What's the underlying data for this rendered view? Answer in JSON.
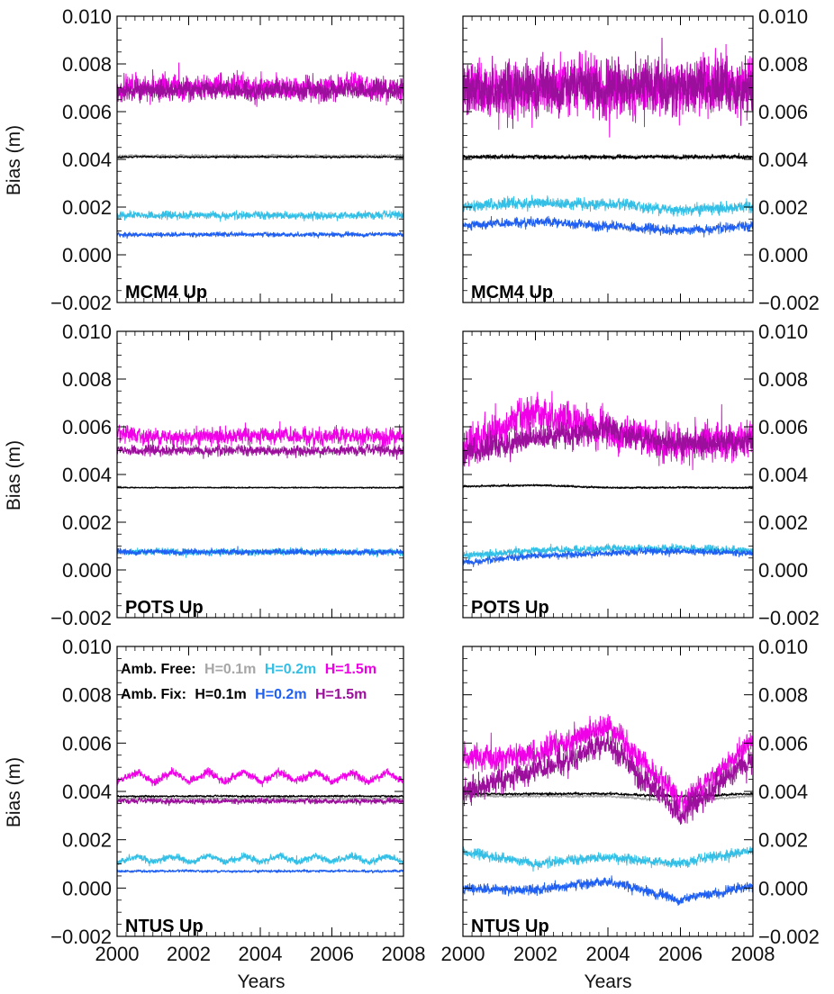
{
  "figure": {
    "ylabel": "Bias (m)",
    "xlabel": "Years",
    "colors": {
      "free_h01": "#a6a6a6",
      "free_h02": "#33bfe6",
      "free_h15": "#f000e6",
      "fix_h01": "#000000",
      "fix_h02": "#1f5ff2",
      "fix_h15": "#9c0f9c"
    },
    "legend": {
      "free_label": "Amb. Free:",
      "fix_label": "Amb. Fix:",
      "h01": "H=0.1m",
      "h02": "H=0.2m",
      "h15": "H=1.5m"
    }
  },
  "chart_data": [
    {
      "type": "line",
      "panel": "MCM4 Up",
      "column": "left",
      "x_range": [
        2000,
        2008
      ],
      "ylim": [
        -0.002,
        0.01
      ],
      "xticks": [
        "2000",
        "2002",
        "2004",
        "2006",
        "2008"
      ],
      "yticks": [
        "−0.002",
        "0.000",
        "0.002",
        "0.004",
        "0.006",
        "0.008",
        "0.010"
      ],
      "series": [
        {
          "name": "Amb. Free H=0.1m",
          "color_key": "free_h01",
          "mean": 0.00415,
          "noise": 4e-05,
          "seasonal": 0,
          "drift": [
            0,
            0,
            0,
            0,
            0
          ]
        },
        {
          "name": "Amb. Fix H=0.1m",
          "color_key": "fix_h01",
          "mean": 0.0041,
          "noise": 3e-05,
          "seasonal": 0,
          "drift": [
            0,
            0,
            0,
            0,
            0
          ]
        },
        {
          "name": "Amb. Free H=0.2m",
          "color_key": "free_h02",
          "mean": 0.00165,
          "noise": 0.00012,
          "seasonal": 0,
          "drift": [
            0,
            0,
            0,
            0,
            0
          ]
        },
        {
          "name": "Amb. Fix H=0.2m",
          "color_key": "fix_h02",
          "mean": 0.00085,
          "noise": 7e-05,
          "seasonal": 0,
          "drift": [
            0,
            0,
            0,
            0,
            0
          ]
        },
        {
          "name": "Amb. Free H=1.5m",
          "color_key": "free_h15",
          "mean": 0.007,
          "noise": 0.0004,
          "seasonal": 0,
          "drift": [
            0,
            0,
            0,
            0,
            0
          ]
        },
        {
          "name": "Amb. Fix H=1.5m",
          "color_key": "fix_h15",
          "mean": 0.0069,
          "noise": 0.0003,
          "seasonal": 0,
          "drift": [
            0,
            0,
            0,
            0,
            0
          ]
        }
      ]
    },
    {
      "type": "line",
      "panel": "MCM4 Up",
      "column": "right",
      "x_range": [
        2000,
        2008
      ],
      "ylim": [
        -0.002,
        0.01
      ],
      "xticks": [
        "2000",
        "2002",
        "2004",
        "2006",
        "2008"
      ],
      "yticks": [
        "−0.002",
        "0.000",
        "0.002",
        "0.004",
        "0.006",
        "0.008",
        "0.010"
      ],
      "series": [
        {
          "name": "Amb. Free H=0.1m",
          "color_key": "free_h01",
          "mean": 0.0041,
          "noise": 6e-05,
          "seasonal": 0,
          "drift": [
            0,
            0,
            0,
            0,
            0
          ]
        },
        {
          "name": "Amb. Fix H=0.1m",
          "color_key": "fix_h01",
          "mean": 0.0041,
          "noise": 6e-05,
          "seasonal": 0,
          "drift": [
            0,
            0,
            0,
            0,
            0
          ]
        },
        {
          "name": "Amb. Free H=0.2m",
          "color_key": "free_h02",
          "mean": 0.002,
          "noise": 0.00018,
          "seasonal": 0,
          "drift": [
            0,
            0.0002,
            0.0001,
            -0.0001,
            0
          ]
        },
        {
          "name": "Amb. Fix H=0.2m",
          "color_key": "fix_h02",
          "mean": 0.0012,
          "noise": 0.00015,
          "seasonal": 0,
          "drift": [
            0,
            0.0002,
            0,
            -0.0002,
            0
          ]
        },
        {
          "name": "Amb. Free H=1.5m",
          "color_key": "free_h15",
          "mean": 0.007,
          "noise": 0.0009,
          "seasonal": 0,
          "drift": [
            0,
            0,
            0,
            0,
            0
          ]
        },
        {
          "name": "Amb. Fix H=1.5m",
          "color_key": "fix_h15",
          "mean": 0.007,
          "noise": 0.0008,
          "seasonal": 0,
          "drift": [
            0,
            0,
            0,
            0,
            0
          ]
        }
      ]
    },
    {
      "type": "line",
      "panel": "POTS Up",
      "column": "left",
      "x_range": [
        2000,
        2008
      ],
      "ylim": [
        -0.002,
        0.01
      ],
      "xticks": [
        "2000",
        "2002",
        "2004",
        "2006",
        "2008"
      ],
      "yticks": [
        "−0.002",
        "0.000",
        "0.002",
        "0.004",
        "0.006",
        "0.008",
        "0.010"
      ],
      "series": [
        {
          "name": "Amb. Free H=0.1m",
          "color_key": "free_h01",
          "mean": 0.00345,
          "noise": 2e-05,
          "seasonal": 0,
          "drift": [
            0,
            0,
            0,
            0,
            0
          ]
        },
        {
          "name": "Amb. Fix H=0.1m",
          "color_key": "fix_h01",
          "mean": 0.00345,
          "noise": 2e-05,
          "seasonal": 0,
          "drift": [
            0,
            0,
            0,
            0,
            0
          ]
        },
        {
          "name": "Amb. Free H=0.2m",
          "color_key": "free_h02",
          "mean": 0.00075,
          "noise": 0.0001,
          "seasonal": 0,
          "drift": [
            0,
            0,
            0,
            0,
            0
          ]
        },
        {
          "name": "Amb. Fix H=0.2m",
          "color_key": "fix_h02",
          "mean": 0.00075,
          "noise": 9e-05,
          "seasonal": 0,
          "drift": [
            0,
            0,
            0,
            0,
            0
          ]
        },
        {
          "name": "Amb. Free H=1.5m",
          "color_key": "free_h15",
          "mean": 0.0056,
          "noise": 0.00028,
          "seasonal": 0,
          "drift": [
            0,
            0,
            0,
            0,
            0
          ]
        },
        {
          "name": "Amb. Fix H=1.5m",
          "color_key": "fix_h15",
          "mean": 0.005,
          "noise": 0.00016,
          "seasonal": 0,
          "drift": [
            0,
            0,
            0,
            0,
            0
          ]
        }
      ]
    },
    {
      "type": "line",
      "panel": "POTS Up",
      "column": "right",
      "x_range": [
        2000,
        2008
      ],
      "ylim": [
        -0.002,
        0.01
      ],
      "xticks": [
        "2000",
        "2002",
        "2004",
        "2006",
        "2008"
      ],
      "yticks": [
        "−0.002",
        "0.000",
        "0.002",
        "0.004",
        "0.006",
        "0.008",
        "0.010"
      ],
      "series": [
        {
          "name": "Amb. Free H=0.1m",
          "color_key": "free_h01",
          "mean": 0.00345,
          "noise": 3e-05,
          "seasonal": 0,
          "drift": [
            5e-05,
            0.0001,
            0,
            0,
            0
          ]
        },
        {
          "name": "Amb. Fix H=0.1m",
          "color_key": "fix_h01",
          "mean": 0.00345,
          "noise": 3e-05,
          "seasonal": 0,
          "drift": [
            5e-05,
            0.0001,
            0,
            0,
            0
          ]
        },
        {
          "name": "Amb. Free H=0.2m",
          "color_key": "free_h02",
          "mean": 0.0008,
          "noise": 0.00012,
          "seasonal": 0,
          "drift": [
            -0.0002,
            0,
            0.0001,
            0.0001,
            0
          ]
        },
        {
          "name": "Amb. Fix H=0.2m",
          "color_key": "fix_h02",
          "mean": 0.0007,
          "noise": 0.0001,
          "seasonal": 0,
          "drift": [
            -0.0004,
            -0.0001,
            0,
            0.0001,
            0
          ]
        },
        {
          "name": "Amb. Free H=1.5m",
          "color_key": "free_h15",
          "mean": 0.0055,
          "noise": 0.0006,
          "seasonal": 0,
          "drift": [
            -0.0005,
            0.0012,
            0.0003,
            -0.0003,
            0
          ]
        },
        {
          "name": "Amb. Fix H=1.5m",
          "color_key": "fix_h15",
          "mean": 0.0053,
          "noise": 0.0004,
          "seasonal": 0,
          "drift": [
            -0.0005,
            0.0003,
            0.0005,
            0,
            0
          ]
        }
      ]
    },
    {
      "type": "line",
      "panel": "NTUS Up",
      "column": "left",
      "x_range": [
        2000,
        2008
      ],
      "ylim": [
        -0.002,
        0.01
      ],
      "xticks": [
        "2000",
        "2002",
        "2004",
        "2006",
        "2008"
      ],
      "yticks": [
        "−0.002",
        "0.000",
        "0.002",
        "0.004",
        "0.006",
        "0.008",
        "0.010"
      ],
      "series": [
        {
          "name": "Amb. Free H=0.1m",
          "color_key": "free_h01",
          "mean": 0.0037,
          "noise": 3e-05,
          "seasonal": 0,
          "drift": [
            0,
            0,
            0,
            0,
            0
          ]
        },
        {
          "name": "Amb. Fix H=0.1m",
          "color_key": "fix_h01",
          "mean": 0.0038,
          "noise": 3e-05,
          "seasonal": 0,
          "drift": [
            0,
            0,
            0,
            0,
            0
          ]
        },
        {
          "name": "Amb. Free H=0.2m",
          "color_key": "free_h02",
          "mean": 0.0012,
          "noise": 0.0001,
          "seasonal": 0.00025,
          "drift": [
            0,
            0,
            0,
            0,
            0
          ]
        },
        {
          "name": "Amb. Fix H=0.2m",
          "color_key": "fix_h02",
          "mean": 0.0007,
          "noise": 4e-05,
          "seasonal": 0,
          "drift": [
            0,
            0,
            0,
            0,
            0
          ]
        },
        {
          "name": "Amb. Free H=1.5m",
          "color_key": "free_h15",
          "mean": 0.0046,
          "noise": 0.00012,
          "seasonal": 0.0004,
          "drift": [
            0,
            0,
            0,
            0,
            0
          ]
        },
        {
          "name": "Amb. Fix H=1.5m",
          "color_key": "fix_h15",
          "mean": 0.0036,
          "noise": 8e-05,
          "seasonal": 0,
          "drift": [
            0,
            0,
            0,
            0,
            0
          ]
        }
      ]
    },
    {
      "type": "line",
      "panel": "NTUS Up",
      "column": "right",
      "x_range": [
        2000,
        2008
      ],
      "ylim": [
        -0.002,
        0.01
      ],
      "xticks": [
        "2000",
        "2002",
        "2004",
        "2006",
        "2008"
      ],
      "yticks": [
        "−0.002",
        "0.000",
        "0.002",
        "0.004",
        "0.006",
        "0.008",
        "0.010"
      ],
      "series": [
        {
          "name": "Amb. Free H=0.1m",
          "color_key": "free_h01",
          "mean": 0.0038,
          "noise": 4e-05,
          "seasonal": 0,
          "drift": [
            0,
            0,
            0,
            -0.0002,
            0
          ]
        },
        {
          "name": "Amb. Fix H=0.1m",
          "color_key": "fix_h01",
          "mean": 0.0039,
          "noise": 4e-05,
          "seasonal": 0,
          "drift": [
            0,
            0,
            0,
            -0.0001,
            0
          ]
        },
        {
          "name": "Amb. Free H=0.2m",
          "color_key": "free_h02",
          "mean": 0.001,
          "noise": 0.00015,
          "seasonal": 0,
          "drift": [
            0.0005,
            0,
            0.0003,
            0,
            0.0006
          ]
        },
        {
          "name": "Amb. Fix H=0.2m",
          "color_key": "fix_h02",
          "mean": -0.0001,
          "noise": 0.00015,
          "seasonal": 0,
          "drift": [
            0.0001,
            0,
            0.0004,
            -0.0004,
            0.0002
          ]
        },
        {
          "name": "Amb. Free H=1.5m",
          "color_key": "free_h15",
          "mean": 0.0053,
          "noise": 0.0004,
          "seasonal": 0,
          "drift": [
            0,
            0.0002,
            0.0015,
            -0.0018,
            0.0008
          ]
        },
        {
          "name": "Amb. Fix H=1.5m",
          "color_key": "fix_h15",
          "mean": 0.0048,
          "noise": 0.0004,
          "seasonal": 0,
          "drift": [
            -0.0008,
            0,
            0.0012,
            -0.0018,
            0.0006
          ]
        }
      ]
    }
  ]
}
